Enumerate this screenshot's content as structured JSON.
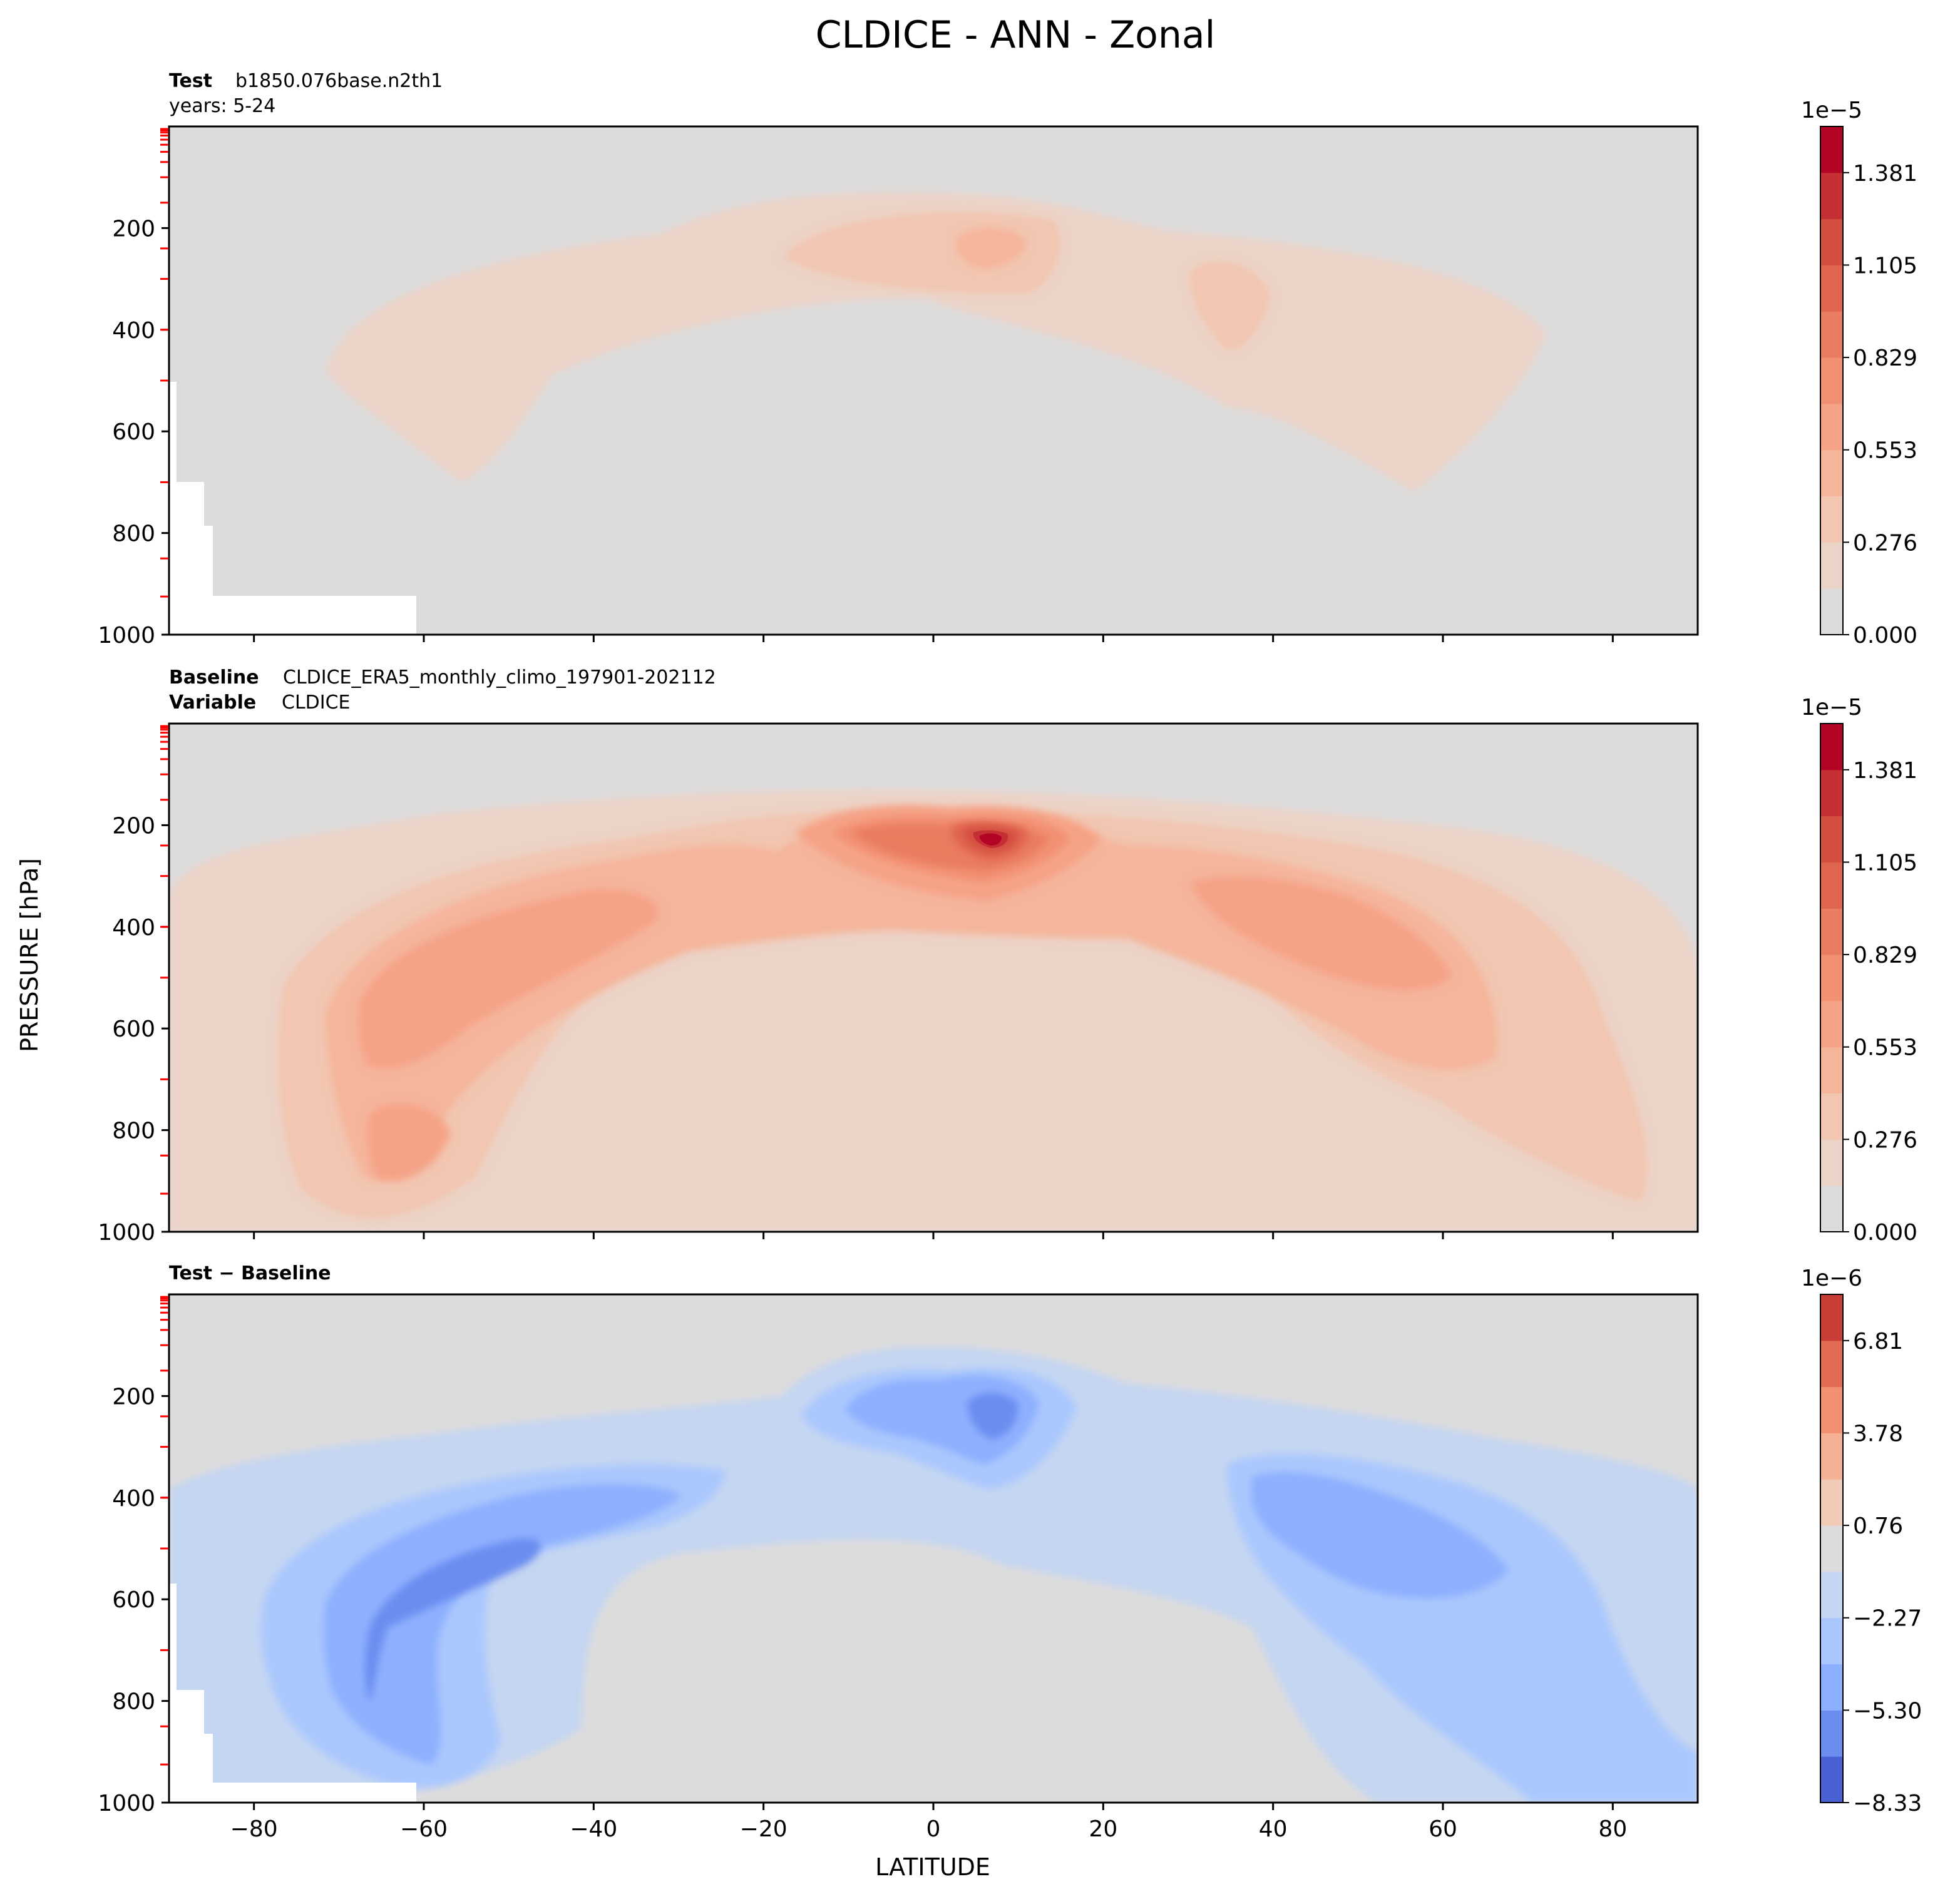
{
  "title": "CLDICE - ANN - Zonal",
  "ylabel": "PRESSURE [hPa]",
  "xlabel": "LATITUDE",
  "x_ticks": [
    -80,
    -60,
    -40,
    -20,
    0,
    20,
    40,
    60,
    80
  ],
  "y_ticks": [
    200,
    400,
    600,
    800,
    1000
  ],
  "chart_data": [
    {
      "type": "heatmap",
      "panel": "test",
      "header": {
        "line1_bold": "Test",
        "line1": "b1850.076base.n2th1",
        "line2": "years: 5-24"
      },
      "xlim": [
        -90,
        90
      ],
      "ylim": [
        1000,
        0
      ],
      "yscale": "linear",
      "colorbar": {
        "scale_label": "1e−5",
        "ticks": [
          "0.000",
          "0.276",
          "0.553",
          "0.829",
          "1.105",
          "1.381"
        ],
        "levels": 11,
        "colors": [
          "#dddcdc",
          "#ecd3c7",
          "#f2c6b1",
          "#f5b59b",
          "#f5a387",
          "#f29073",
          "#ea7c61",
          "#e0654f",
          "#d44e41",
          "#c43033",
          "#b40426"
        ]
      },
      "features": [
        {
          "name": "upper-tropospheric ice band",
          "level": 1
        },
        {
          "name": "tropical maximum near 5N 230hPa",
          "level": 2
        },
        {
          "name": "northern midlatitude maximum near 35N 320hPa",
          "level": 2
        }
      ]
    },
    {
      "type": "heatmap",
      "panel": "baseline",
      "header": {
        "line1_bold": "Baseline",
        "line1": "CLDICE_ERA5_monthly_climo_197901-202112",
        "line2_bold": "Variable",
        "line2": "CLDICE"
      },
      "xlim": [
        -90,
        90
      ],
      "ylim": [
        1000,
        0
      ],
      "yscale": "linear",
      "colorbar": {
        "scale_label": "1e−5",
        "ticks": [
          "0.000",
          "0.276",
          "0.553",
          "0.829",
          "1.105",
          "1.381"
        ],
        "levels": 11,
        "colors": [
          "#dddcdc",
          "#ecd3c7",
          "#f2c6b1",
          "#f5b59b",
          "#f5a387",
          "#f29073",
          "#ea7c61",
          "#e0654f",
          "#d44e41",
          "#c43033",
          "#b40426"
        ]
      },
      "features": [
        {
          "name": "tropical tropopause maximum near 7N 230hPa",
          "level": 10
        },
        {
          "name": "southern midlatitude maximum near -55N 550hPa",
          "level": 4
        },
        {
          "name": "northern midlatitude maximum near 45N 420hPa",
          "level": 4
        }
      ]
    },
    {
      "type": "heatmap",
      "panel": "difference",
      "header": {
        "line1_bold": "Test − Baseline"
      },
      "xlim": [
        -90,
        90
      ],
      "ylim": [
        1000,
        0
      ],
      "yscale": "linear",
      "colorbar": {
        "scale_label": "1e−6",
        "ticks": [
          "−8.33",
          "−5.30",
          "−2.27",
          "0.76",
          "3.78",
          "6.81"
        ],
        "levels": 11,
        "colors": [
          "#4961d2",
          "#6b8df0",
          "#8db0fe",
          "#aac7fd",
          "#c5d6f2",
          "#dddcdc",
          "#f2cbb7",
          "#f5b194",
          "#f29072",
          "#e26952",
          "#c83d36"
        ]
      },
      "features": [
        {
          "name": "negative difference band",
          "level": -1
        },
        {
          "name": "tropical minimum near 7N 240hPa",
          "level": -4
        },
        {
          "name": "southern midlatitude minimum near -55N 520hPa",
          "level": -3
        },
        {
          "name": "northern midlatitude minimum near 50N 450hPa",
          "level": -2
        }
      ]
    }
  ]
}
